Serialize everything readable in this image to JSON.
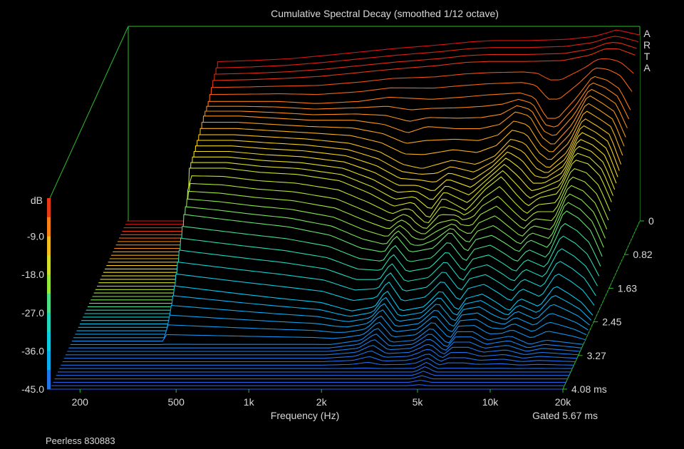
{
  "chart_data": {
    "type": "waterfall-3d",
    "title": "Cumulative Spectral Decay (smoothed 1/12 octave)",
    "xlabel": "Frequency (Hz)",
    "x_scale": "log",
    "xlim": [
      150,
      20000
    ],
    "x_ticks": [
      {
        "value": 200,
        "label": "200"
      },
      {
        "value": 500,
        "label": "500"
      },
      {
        "value": 1000,
        "label": "1k"
      },
      {
        "value": 2000,
        "label": "2k"
      },
      {
        "value": 5000,
        "label": "5k"
      },
      {
        "value": 10000,
        "label": "10k"
      },
      {
        "value": 20000,
        "label": "20k"
      }
    ],
    "zlabel": "dB",
    "zlim": [
      -45,
      0
    ],
    "z_ticks": [
      "-9.0",
      "-18.0",
      "-27.0",
      "-36.0",
      "-45.0"
    ],
    "time_unit": "ms",
    "time_ticks": [
      "0",
      "0.82",
      "1.63",
      "2.45",
      "3.27",
      "4.08 ms"
    ],
    "tlim": [
      0,
      4.08
    ],
    "gating": "Gated 5.67 ms",
    "brand": "A R T A",
    "footer": "Peerless 830883",
    "slice_count": 50,
    "slices": [
      {
        "t": 0.0,
        "start_hz": 345,
        "points": [
          [
            345,
            -7.5
          ],
          [
            500,
            -7.2
          ],
          [
            700,
            -6.8
          ],
          [
            1000,
            -6.0
          ],
          [
            1500,
            -5.0
          ],
          [
            2000,
            -4.3
          ],
          [
            3000,
            -3.5
          ],
          [
            4000,
            -2.8
          ],
          [
            5000,
            -2.5
          ],
          [
            7000,
            -2.5
          ],
          [
            10000,
            -2.2
          ],
          [
            13000,
            -1.5
          ],
          [
            15000,
            -0.5
          ],
          [
            16000,
            0.0
          ],
          [
            17000,
            -0.3
          ],
          [
            20000,
            -1.2
          ]
        ]
      },
      {
        "t": 0.25,
        "start_hz": 345,
        "points": [
          [
            345,
            -9.5
          ],
          [
            500,
            -9.3
          ],
          [
            700,
            -9.0
          ],
          [
            1000,
            -8.5
          ],
          [
            1500,
            -7.5
          ],
          [
            2000,
            -6.8
          ],
          [
            3000,
            -6.0
          ],
          [
            4000,
            -5.2
          ],
          [
            5000,
            -5.0
          ],
          [
            7000,
            -5.0
          ],
          [
            10000,
            -4.8
          ],
          [
            13000,
            -3.5
          ],
          [
            15000,
            -2.0
          ],
          [
            17000,
            -2.0
          ],
          [
            20000,
            -3.5
          ]
        ]
      },
      {
        "t": 0.5,
        "start_hz": 345,
        "points": [
          [
            345,
            -12
          ],
          [
            500,
            -12
          ],
          [
            700,
            -12
          ],
          [
            1000,
            -12.5
          ],
          [
            1500,
            -12
          ],
          [
            2000,
            -11
          ],
          [
            3000,
            -11.5
          ],
          [
            4000,
            -11
          ],
          [
            5000,
            -10.5
          ],
          [
            7000,
            -10
          ],
          [
            8000,
            -11
          ],
          [
            9000,
            -16
          ],
          [
            10000,
            -16
          ],
          [
            12000,
            -11
          ],
          [
            14000,
            -6
          ],
          [
            16000,
            -7
          ],
          [
            18000,
            -9
          ],
          [
            20000,
            -14
          ]
        ]
      },
      {
        "t": 0.75,
        "start_hz": 345,
        "points": [
          [
            345,
            -13
          ],
          [
            500,
            -13
          ],
          [
            700,
            -13.5
          ],
          [
            1000,
            -14
          ],
          [
            1500,
            -14
          ],
          [
            2000,
            -15
          ],
          [
            2500,
            -17
          ],
          [
            3000,
            -15.5
          ],
          [
            4000,
            -16
          ],
          [
            5000,
            -16
          ],
          [
            6000,
            -15
          ],
          [
            7000,
            -12
          ],
          [
            8000,
            -13
          ],
          [
            9000,
            -18
          ],
          [
            10000,
            -20
          ],
          [
            12000,
            -15
          ],
          [
            14000,
            -8
          ],
          [
            16000,
            -10
          ],
          [
            18000,
            -12
          ],
          [
            20000,
            -18
          ]
        ]
      },
      {
        "t": 1.0,
        "start_hz": 345,
        "points": [
          [
            345,
            -15
          ],
          [
            500,
            -15
          ],
          [
            700,
            -15.5
          ],
          [
            1000,
            -16
          ],
          [
            1500,
            -17
          ],
          [
            2000,
            -19
          ],
          [
            2500,
            -22
          ],
          [
            3000,
            -23
          ],
          [
            4000,
            -21
          ],
          [
            5000,
            -22
          ],
          [
            6000,
            -20
          ],
          [
            7000,
            -16
          ],
          [
            8000,
            -17
          ],
          [
            9000,
            -21
          ],
          [
            10000,
            -23
          ],
          [
            12000,
            -19
          ],
          [
            14000,
            -11
          ],
          [
            16000,
            -13
          ],
          [
            18000,
            -15
          ],
          [
            20000,
            -22
          ]
        ]
      },
      {
        "t": 1.5,
        "start_hz": 345,
        "points": [
          [
            345,
            -18
          ],
          [
            500,
            -18
          ],
          [
            700,
            -19
          ],
          [
            1000,
            -19.5
          ],
          [
            1500,
            -21
          ],
          [
            2000,
            -24
          ],
          [
            2500,
            -27
          ],
          [
            3000,
            -26
          ],
          [
            3500,
            -30
          ],
          [
            4000,
            -25
          ],
          [
            5000,
            -28
          ],
          [
            6000,
            -23
          ],
          [
            7000,
            -20
          ],
          [
            8000,
            -24
          ],
          [
            9000,
            -27
          ],
          [
            10000,
            -25
          ],
          [
            12000,
            -24
          ],
          [
            14000,
            -16
          ],
          [
            16000,
            -17
          ],
          [
            18000,
            -20
          ],
          [
            20000,
            -26
          ]
        ]
      },
      {
        "t": 2.0,
        "start_hz": 360,
        "points": [
          [
            360,
            -24
          ],
          [
            500,
            -25
          ],
          [
            700,
            -26
          ],
          [
            1000,
            -27
          ],
          [
            1500,
            -29
          ],
          [
            2000,
            -32
          ],
          [
            2500,
            -33
          ],
          [
            2800,
            -29
          ],
          [
            3200,
            -33
          ],
          [
            4000,
            -32
          ],
          [
            4700,
            -28
          ],
          [
            5500,
            -33
          ],
          [
            6000,
            -30
          ],
          [
            7000,
            -29
          ],
          [
            8000,
            -31
          ],
          [
            9000,
            -33
          ],
          [
            10000,
            -30
          ],
          [
            12000,
            -32
          ],
          [
            14000,
            -23
          ],
          [
            16000,
            -25
          ],
          [
            18000,
            -28
          ],
          [
            20000,
            -34
          ]
        ]
      },
      {
        "t": 2.5,
        "start_hz": 360,
        "points": [
          [
            360,
            -36
          ],
          [
            500,
            -37
          ],
          [
            700,
            -38
          ],
          [
            1000,
            -39
          ],
          [
            1500,
            -40
          ],
          [
            2000,
            -42
          ],
          [
            2500,
            -41
          ],
          [
            2800,
            -37
          ],
          [
            3200,
            -42
          ],
          [
            4000,
            -41
          ],
          [
            4700,
            -37
          ],
          [
            5500,
            -42
          ],
          [
            6000,
            -39
          ],
          [
            7000,
            -38
          ],
          [
            8000,
            -40
          ],
          [
            9000,
            -42
          ],
          [
            10000,
            -39
          ],
          [
            12000,
            -41
          ],
          [
            14000,
            -36
          ],
          [
            16000,
            -38
          ],
          [
            18000,
            -40
          ],
          [
            20000,
            -43
          ]
        ]
      },
      {
        "t": 3.0,
        "start_hz": 1800,
        "points": [
          [
            1800,
            -45
          ],
          [
            2400,
            -44
          ],
          [
            2800,
            -41
          ],
          [
            3200,
            -44.5
          ],
          [
            4000,
            -44
          ],
          [
            4700,
            -41
          ],
          [
            5500,
            -45
          ],
          [
            6000,
            -42
          ],
          [
            7000,
            -42
          ],
          [
            8000,
            -44
          ],
          [
            10000,
            -43
          ],
          [
            12000,
            -45
          ],
          [
            14000,
            -44
          ],
          [
            20000,
            -45
          ]
        ]
      },
      {
        "t": 3.6,
        "start_hz": 2200,
        "points": [
          [
            2200,
            -45
          ],
          [
            4500,
            -45
          ],
          [
            5000,
            -43.5
          ],
          [
            5500,
            -45
          ],
          [
            20000,
            -45
          ]
        ]
      },
      {
        "t": 4.08,
        "start_hz": 150,
        "points": [
          [
            150,
            -45
          ],
          [
            20000,
            -45
          ]
        ]
      }
    ]
  }
}
